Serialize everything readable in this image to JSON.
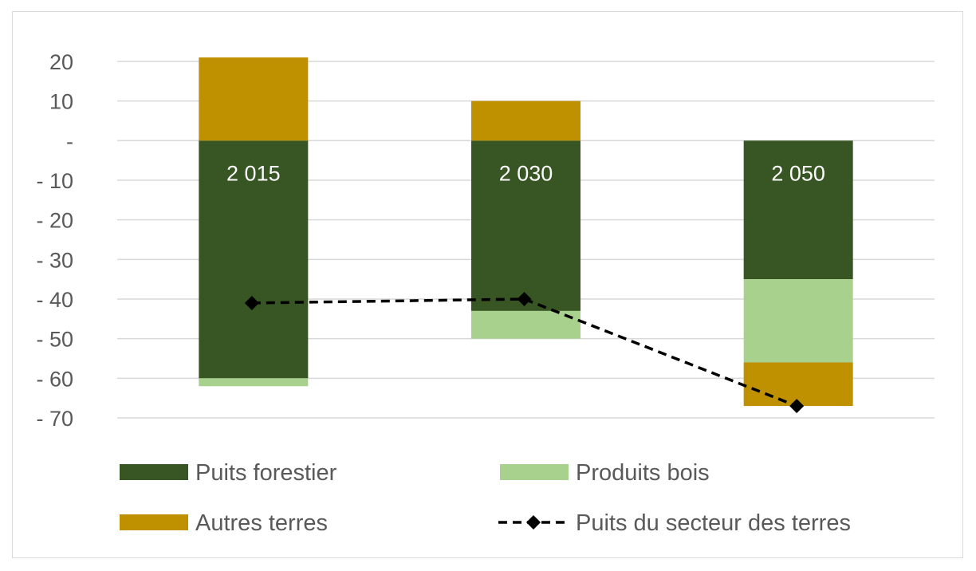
{
  "chart_data": {
    "type": "bar",
    "stacked": true,
    "categories": [
      "2 015",
      "2 030",
      "2 050"
    ],
    "ylim": [
      -70,
      20
    ],
    "yticks": [
      20,
      10,
      0,
      -10,
      -20,
      -30,
      -40,
      -50,
      -60,
      -70
    ],
    "ytick_labels": [
      "20",
      "10",
      "-",
      "- 10",
      "- 20",
      "- 30",
      "- 40",
      "- 50",
      "- 60",
      "- 70"
    ],
    "grid": true,
    "legend_position": "bottom",
    "series": [
      {
        "name": "Puits forestier",
        "kind": "bar",
        "color": "#375623",
        "values": [
          -60,
          -43,
          -35
        ]
      },
      {
        "name": "Produits bois",
        "kind": "bar",
        "color": "#a9d18e",
        "values": [
          -2,
          -7,
          -21
        ]
      },
      {
        "name": "Autres terres",
        "kind": "bar",
        "color": "#bf9000",
        "values": [
          21,
          10,
          -11
        ]
      },
      {
        "name": "Puits du secteur des terres",
        "kind": "line",
        "color": "#000000",
        "style": "dashed",
        "marker": "diamond",
        "values": [
          -41,
          -40,
          -67
        ]
      }
    ]
  }
}
